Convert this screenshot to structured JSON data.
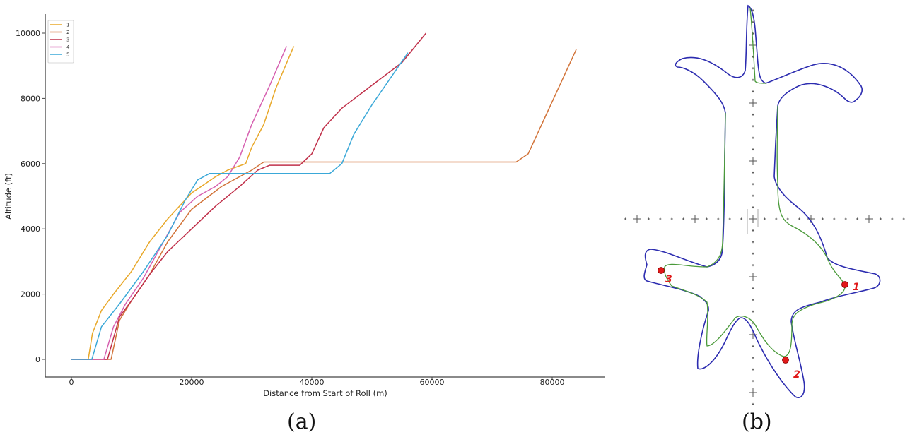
{
  "captions": {
    "a": "(a)",
    "b": "(b)"
  },
  "panel_b": {
    "description": "Trajectory outline with three numbered markers",
    "markers": [
      {
        "label": "1",
        "x": 1195,
        "y": 403
      },
      {
        "label": "2",
        "x": 1111,
        "y": 510
      },
      {
        "label": "3",
        "x": 935,
        "y": 383
      }
    ],
    "colors": {
      "outline": "#2c2cb0",
      "path": "#4a9a3a",
      "marker": "#e01818",
      "grid": "#555555"
    }
  },
  "chart_data": [
    {
      "type": "line",
      "title": "",
      "xlabel": "Distance from Start of Roll (m)",
      "ylabel": "Altitude (ft)",
      "xlim": [
        -5000,
        88000
      ],
      "ylim": [
        -500,
        10400
      ],
      "xticks": [
        0,
        20000,
        40000,
        60000,
        80000
      ],
      "yticks": [
        0,
        2000,
        4000,
        6000,
        8000,
        10000
      ],
      "grid": false,
      "legend_position": "upper left",
      "series": [
        {
          "name": "1",
          "color": "#e8a82a",
          "x": [
            0,
            2800,
            3500,
            5000,
            7000,
            10000,
            13000,
            16000,
            20000,
            24000,
            26000,
            29000,
            30000,
            32000,
            34000,
            37000
          ],
          "y": [
            0,
            0,
            800,
            1500,
            2000,
            2700,
            3600,
            4300,
            5100,
            5600,
            5800,
            6000,
            6500,
            7200,
            8300,
            9600
          ]
        },
        {
          "name": "2",
          "color": "#d2743a",
          "x": [
            0,
            6600,
            8000,
            10000,
            13000,
            16000,
            20000,
            25000,
            30000,
            32000,
            40000,
            50000,
            60000,
            70000,
            74000,
            76000,
            78000,
            80000,
            82000,
            84000
          ],
          "y": [
            0,
            0,
            1200,
            1800,
            2600,
            3600,
            4600,
            5300,
            5800,
            6050,
            6050,
            6050,
            6050,
            6050,
            6050,
            6300,
            7100,
            7900,
            8700,
            9500
          ]
        },
        {
          "name": "3",
          "color": "#c0304a",
          "x": [
            0,
            6000,
            8000,
            10000,
            13000,
            16000,
            20000,
            24000,
            28000,
            31000,
            33000,
            38000,
            40000,
            42000,
            45000,
            50000,
            55000,
            59000
          ],
          "y": [
            0,
            0,
            1300,
            1800,
            2600,
            3300,
            4000,
            4700,
            5300,
            5800,
            5950,
            5950,
            6300,
            7100,
            7700,
            8400,
            9100,
            10000
          ]
        },
        {
          "name": "4",
          "color": "#d660b0",
          "x": [
            0,
            5400,
            7000,
            9000,
            12000,
            15000,
            18000,
            21000,
            24000,
            26000,
            28000,
            30000,
            33000,
            35800
          ],
          "y": [
            0,
            0,
            1000,
            1700,
            2500,
            3500,
            4500,
            5000,
            5300,
            5600,
            6200,
            7200,
            8400,
            9600
          ]
        },
        {
          "name": "5",
          "color": "#3aa8d8",
          "x": [
            0,
            3400,
            5000,
            8000,
            12000,
            16000,
            19000,
            21000,
            23000,
            30000,
            43000,
            45000,
            47000,
            50000,
            53000,
            56000
          ],
          "y": [
            0,
            0,
            1000,
            1700,
            2700,
            3800,
            4900,
            5500,
            5700,
            5700,
            5700,
            6000,
            6900,
            7800,
            8600,
            9400
          ]
        }
      ]
    }
  ]
}
